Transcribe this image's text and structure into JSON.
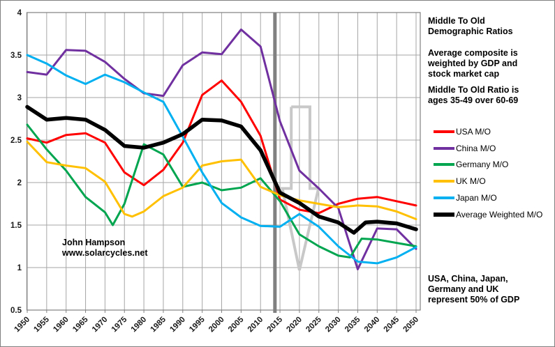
{
  "panel": {
    "block1": "Middle To Old\nDemographic Ratios",
    "block2": "Average composite is\nweighted by GDP and\nstock market cap",
    "block3": "Middle To Old Ratio is\nages 35-49 over 60-69",
    "block4": "USA, China, Japan,\nGermany and UK\nrepresent 50% of GDP"
  },
  "watermark": "John Hampson\nwww.solarcycles.net",
  "chart_data": {
    "type": "line",
    "title": "Middle To Old Demographic Ratios",
    "xlabel": "",
    "ylabel": "",
    "grid": true,
    "legend_position": "right",
    "x_axis": {
      "min": 1950,
      "max": 2050,
      "tick_step": 5,
      "ticks": [
        1950,
        1955,
        1960,
        1965,
        1970,
        1975,
        1980,
        1985,
        1990,
        1995,
        2000,
        2005,
        2010,
        2015,
        2020,
        2025,
        2030,
        2035,
        2040,
        2045,
        2050
      ]
    },
    "y_axis": {
      "min": 0.5,
      "max": 4.0,
      "tick_step": 0.5,
      "ticks": [
        "0.5",
        "1",
        "1.5",
        "2",
        "2.5",
        "3",
        "3.5",
        "4"
      ]
    },
    "grid_color": "#a6a6a6",
    "axis_color": "#808080",
    "series": [
      {
        "name": "USA M/O",
        "color": "#ff0000",
        "width": 3,
        "points": [
          [
            1950,
            2.52
          ],
          [
            1955,
            2.47
          ],
          [
            1960,
            2.56
          ],
          [
            1965,
            2.58
          ],
          [
            1970,
            2.47
          ],
          [
            1975,
            2.12
          ],
          [
            1980,
            1.97
          ],
          [
            1985,
            2.15
          ],
          [
            1990,
            2.47
          ],
          [
            1995,
            3.03
          ],
          [
            2000,
            3.2
          ],
          [
            2005,
            2.95
          ],
          [
            2010,
            2.55
          ],
          [
            2015,
            1.8
          ],
          [
            2020,
            1.68
          ],
          [
            2025,
            1.64
          ],
          [
            2030,
            1.75
          ],
          [
            2035,
            1.81
          ],
          [
            2040,
            1.83
          ],
          [
            2045,
            1.78
          ],
          [
            2050,
            1.73
          ]
        ]
      },
      {
        "name": "China M/O",
        "color": "#7030a0",
        "width": 3,
        "points": [
          [
            1950,
            3.3
          ],
          [
            1955,
            3.27
          ],
          [
            1960,
            3.56
          ],
          [
            1965,
            3.55
          ],
          [
            1970,
            3.42
          ],
          [
            1975,
            3.22
          ],
          [
            1980,
            3.05
          ],
          [
            1985,
            3.02
          ],
          [
            1990,
            3.38
          ],
          [
            1995,
            3.53
          ],
          [
            2000,
            3.51
          ],
          [
            2005,
            3.8
          ],
          [
            2010,
            3.6
          ],
          [
            2015,
            2.72
          ],
          [
            2020,
            2.14
          ],
          [
            2025,
            1.93
          ],
          [
            2030,
            1.7
          ],
          [
            2035,
            0.98
          ],
          [
            2040,
            1.46
          ],
          [
            2045,
            1.45
          ],
          [
            2050,
            1.22
          ]
        ]
      },
      {
        "name": "Germany M/O",
        "color": "#00a550",
        "width": 3,
        "points": [
          [
            1950,
            2.68
          ],
          [
            1955,
            2.39
          ],
          [
            1960,
            2.14
          ],
          [
            1965,
            1.83
          ],
          [
            1970,
            1.65
          ],
          [
            1972,
            1.5
          ],
          [
            1975,
            1.75
          ],
          [
            1980,
            2.45
          ],
          [
            1985,
            2.33
          ],
          [
            1990,
            1.95
          ],
          [
            1995,
            2.0
          ],
          [
            2000,
            1.91
          ],
          [
            2005,
            1.94
          ],
          [
            2010,
            2.05
          ],
          [
            2015,
            1.78
          ],
          [
            2020,
            1.39
          ],
          [
            2025,
            1.25
          ],
          [
            2030,
            1.14
          ],
          [
            2033,
            1.12
          ],
          [
            2036,
            1.34
          ],
          [
            2040,
            1.33
          ],
          [
            2045,
            1.29
          ],
          [
            2050,
            1.25
          ]
        ]
      },
      {
        "name": "UK M/O",
        "color": "#ffc000",
        "width": 3,
        "points": [
          [
            1950,
            2.48
          ],
          [
            1955,
            2.24
          ],
          [
            1960,
            2.2
          ],
          [
            1965,
            2.17
          ],
          [
            1970,
            2.01
          ],
          [
            1975,
            1.63
          ],
          [
            1977,
            1.6
          ],
          [
            1980,
            1.66
          ],
          [
            1985,
            1.84
          ],
          [
            1990,
            1.94
          ],
          [
            1995,
            2.2
          ],
          [
            2000,
            2.25
          ],
          [
            2005,
            2.27
          ],
          [
            2010,
            1.95
          ],
          [
            2015,
            1.85
          ],
          [
            2020,
            1.79
          ],
          [
            2025,
            1.75
          ],
          [
            2030,
            1.71
          ],
          [
            2035,
            1.73
          ],
          [
            2040,
            1.72
          ],
          [
            2045,
            1.66
          ],
          [
            2050,
            1.57
          ]
        ]
      },
      {
        "name": "Japan M/O",
        "color": "#00b0f0",
        "width": 3,
        "points": [
          [
            1950,
            3.5
          ],
          [
            1955,
            3.4
          ],
          [
            1960,
            3.26
          ],
          [
            1965,
            3.16
          ],
          [
            1970,
            3.27
          ],
          [
            1975,
            3.18
          ],
          [
            1980,
            3.06
          ],
          [
            1985,
            2.95
          ],
          [
            1990,
            2.54
          ],
          [
            1995,
            2.12
          ],
          [
            2000,
            1.76
          ],
          [
            2005,
            1.59
          ],
          [
            2010,
            1.49
          ],
          [
            2015,
            1.48
          ],
          [
            2020,
            1.63
          ],
          [
            2025,
            1.48
          ],
          [
            2030,
            1.25
          ],
          [
            2035,
            1.07
          ],
          [
            2040,
            1.05
          ],
          [
            2045,
            1.12
          ],
          [
            2050,
            1.24
          ]
        ]
      },
      {
        "name": "Average Weighted M/O",
        "color": "#000000",
        "width": 5.5,
        "points": [
          [
            1950,
            2.89
          ],
          [
            1955,
            2.74
          ],
          [
            1960,
            2.76
          ],
          [
            1965,
            2.74
          ],
          [
            1970,
            2.62
          ],
          [
            1975,
            2.43
          ],
          [
            1980,
            2.41
          ],
          [
            1985,
            2.47
          ],
          [
            1990,
            2.57
          ],
          [
            1995,
            2.74
          ],
          [
            2000,
            2.73
          ],
          [
            2005,
            2.66
          ],
          [
            2010,
            2.38
          ],
          [
            2015,
            1.88
          ],
          [
            2020,
            1.76
          ],
          [
            2025,
            1.6
          ],
          [
            2030,
            1.53
          ],
          [
            2034,
            1.41
          ],
          [
            2037,
            1.53
          ],
          [
            2040,
            1.54
          ],
          [
            2045,
            1.52
          ],
          [
            2050,
            1.45
          ]
        ]
      }
    ],
    "marker_line": {
      "year": 2013.7,
      "color": "#808080",
      "width": 5
    },
    "annotation_arrow": {
      "color": "#c8c8c8",
      "width": 4,
      "points_year_value": [
        [
          2017.9,
          2.89
        ],
        [
          2022.7,
          2.89
        ],
        [
          2022.7,
          1.93
        ],
        [
          2024.9,
          1.93
        ],
        [
          2020,
          0.97
        ],
        [
          2015.6,
          1.93
        ],
        [
          2017.9,
          1.93
        ],
        [
          2017.9,
          2.89
        ]
      ]
    }
  }
}
